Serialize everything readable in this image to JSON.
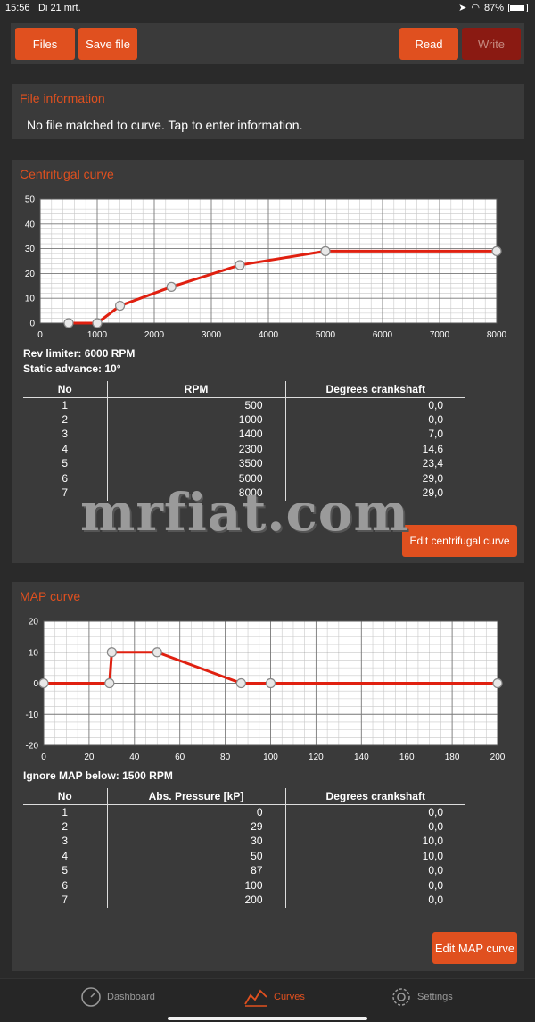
{
  "status": {
    "time": "15:56",
    "date": "Di 21 mrt.",
    "battery": "87%"
  },
  "toolbar": {
    "files": "Files",
    "save": "Save file",
    "read": "Read",
    "write": "Write"
  },
  "file_info": {
    "title": "File information",
    "text": "No file matched to curve. Tap to enter information."
  },
  "centrifugal": {
    "title": "Centrifugal curve",
    "rev_limiter": "Rev limiter: 6000 RPM",
    "static_advance": "Static advance: 10°",
    "headers": [
      "No",
      "RPM",
      "Degrees crankshaft"
    ],
    "rows": [
      [
        "1",
        "500",
        "0,0"
      ],
      [
        "2",
        "1000",
        "0,0"
      ],
      [
        "3",
        "1400",
        "7,0"
      ],
      [
        "4",
        "2300",
        "14,6"
      ],
      [
        "5",
        "3500",
        "23,4"
      ],
      [
        "6",
        "5000",
        "29,0"
      ],
      [
        "7",
        "8000",
        "29,0"
      ]
    ],
    "edit_button": "Edit centrifugal curve"
  },
  "map": {
    "title": "MAP curve",
    "ignore": "Ignore MAP below: 1500 RPM",
    "headers": [
      "No",
      "Abs. Pressure [kP]",
      "Degrees crankshaft"
    ],
    "rows": [
      [
        "1",
        "0",
        "0,0"
      ],
      [
        "2",
        "29",
        "0,0"
      ],
      [
        "3",
        "30",
        "10,0"
      ],
      [
        "4",
        "50",
        "10,0"
      ],
      [
        "5",
        "87",
        "0,0"
      ],
      [
        "6",
        "100",
        "0,0"
      ],
      [
        "7",
        "200",
        "0,0"
      ]
    ],
    "edit_button": "Edit MAP curve"
  },
  "watermark": "mrfiat.com",
  "tabs": {
    "dashboard": "Dashboard",
    "curves": "Curves",
    "settings": "Settings"
  },
  "colors": {
    "accent": "#e0501f",
    "line": "#e02010",
    "panel": "#3a3a3a"
  },
  "chart_data": [
    {
      "type": "line",
      "x": [
        500,
        1000,
        1400,
        2300,
        3500,
        5000,
        8000
      ],
      "y": [
        0,
        0,
        7,
        14.6,
        23.4,
        29,
        29
      ],
      "xlim": [
        0,
        8000
      ],
      "ylim": [
        0,
        50
      ],
      "xticks": [
        0,
        1000,
        2000,
        3000,
        4000,
        5000,
        6000,
        7000,
        8000
      ],
      "yticks": [
        0,
        10,
        20,
        30,
        40,
        50
      ],
      "grid": true
    },
    {
      "type": "line",
      "x": [
        0,
        29,
        30,
        50,
        87,
        100,
        200
      ],
      "y": [
        0,
        0,
        10,
        10,
        0,
        0,
        0
      ],
      "xlim": [
        0,
        200
      ],
      "ylim": [
        -20,
        20
      ],
      "xticks": [
        0,
        20,
        40,
        60,
        80,
        100,
        120,
        140,
        160,
        180,
        200
      ],
      "yticks": [
        -20,
        -10,
        0,
        10,
        20
      ],
      "grid": true
    }
  ]
}
